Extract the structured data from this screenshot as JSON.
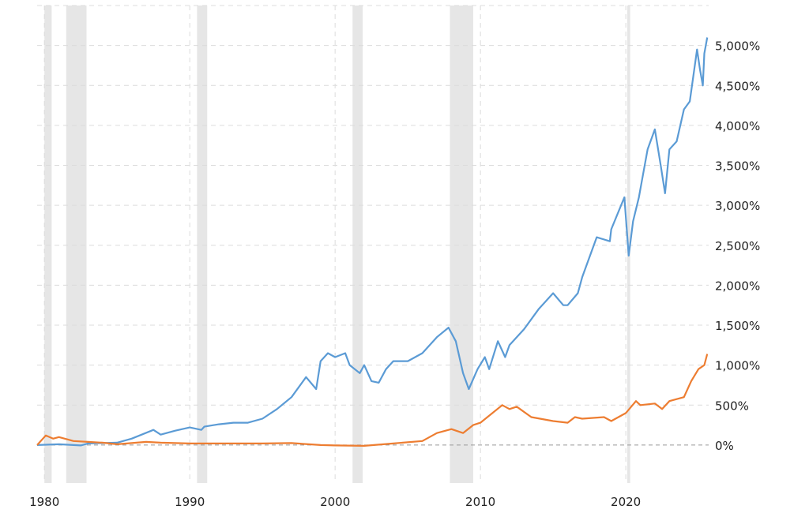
{
  "chart_data": {
    "type": "line",
    "title": "",
    "xlabel": "",
    "ylabel": "",
    "xlim": [
      1979.5,
      2025.7
    ],
    "ylim": [
      -475,
      5500
    ],
    "grid": true,
    "legend": "none",
    "x_ticks": [
      1980,
      1990,
      2000,
      2010,
      2020
    ],
    "x_tick_labels": [
      "1980",
      "1990",
      "2000",
      "2010",
      "2020"
    ],
    "y_ticks": [
      0,
      500,
      1000,
      1500,
      2000,
      2500,
      3000,
      3500,
      4000,
      4500,
      5000
    ],
    "y_tick_labels": [
      "0%",
      "500%",
      "1,000%",
      "1,500%",
      "2,000%",
      "2,500%",
      "3,000%",
      "3,500%",
      "4,000%",
      "4,500%",
      "5,000%"
    ],
    "recessions": [
      [
        1980.0,
        1980.5
      ],
      [
        1981.5,
        1982.9
      ],
      [
        1990.5,
        1991.2
      ],
      [
        2001.2,
        2001.9
      ],
      [
        2007.9,
        2009.5
      ],
      [
        2020.1,
        2020.3
      ]
    ],
    "series": [
      {
        "name": "",
        "color": "#5b9bd5",
        "x": [
          1979.5,
          1981,
          1982.5,
          1983,
          1985,
          1986,
          1987.5,
          1988,
          1989,
          1990,
          1990.8,
          1991,
          1992,
          1993,
          1994,
          1995,
          1996,
          1997,
          1998,
          1998.7,
          1999,
          1999.5,
          2000,
          2000.7,
          2001,
          2001.7,
          2002,
          2002.5,
          2003,
          2003.5,
          2004,
          2005,
          2006,
          2007,
          2007.8,
          2008.3,
          2008.8,
          2009.2,
          2009.8,
          2010.3,
          2010.6,
          2011.2,
          2011.7,
          2012,
          2013,
          2014,
          2015,
          2015.7,
          2016,
          2016.7,
          2017,
          2018,
          2018.9,
          2019,
          2019.9,
          2020.2,
          2020.5,
          2020.9,
          2021,
          2021.5,
          2022,
          2022.4,
          2022.7,
          2023,
          2023.5,
          2024,
          2024.4,
          2024.9,
          2025.1,
          2025.3,
          2025.4,
          2025.6
        ],
        "y": [
          0,
          10,
          -5,
          20,
          30,
          80,
          190,
          130,
          180,
          220,
          190,
          230,
          260,
          280,
          280,
          330,
          450,
          600,
          850,
          700,
          1050,
          1150,
          1100,
          1150,
          1000,
          900,
          1000,
          800,
          780,
          950,
          1050,
          1050,
          1150,
          1350,
          1470,
          1300,
          900,
          700,
          950,
          1100,
          950,
          1300,
          1100,
          1250,
          1450,
          1700,
          1900,
          1750,
          1750,
          1900,
          2100,
          2600,
          2550,
          2700,
          3100,
          2370,
          2800,
          3100,
          3200,
          3700,
          3950,
          3500,
          3150,
          3700,
          3800,
          4200,
          4300,
          4950,
          4700,
          4500,
          4900,
          5100
        ]
      },
      {
        "name": "",
        "color": "#ed7d31",
        "x": [
          1979.5,
          1980.1,
          1980.6,
          1981,
          1982,
          1983,
          1984,
          1985,
          1987,
          1988,
          1990,
          1995,
          1997,
          1999,
          2000,
          2002,
          2004,
          2006,
          2007,
          2008,
          2008.8,
          2009.5,
          2010,
          2011.5,
          2012,
          2012.5,
          2013.5,
          2015,
          2016,
          2016.5,
          2017,
          2018.5,
          2019,
          2020,
          2020.7,
          2021,
          2022,
          2022.5,
          2023,
          2024,
          2024.5,
          2025,
          2025.4,
          2025.6
        ],
        "y": [
          0,
          120,
          80,
          100,
          50,
          40,
          30,
          10,
          40,
          30,
          20,
          20,
          25,
          0,
          -5,
          -10,
          20,
          50,
          150,
          200,
          150,
          250,
          280,
          500,
          450,
          480,
          350,
          300,
          280,
          350,
          330,
          350,
          300,
          400,
          550,
          500,
          520,
          450,
          550,
          600,
          800,
          950,
          1000,
          1140
        ]
      }
    ]
  }
}
